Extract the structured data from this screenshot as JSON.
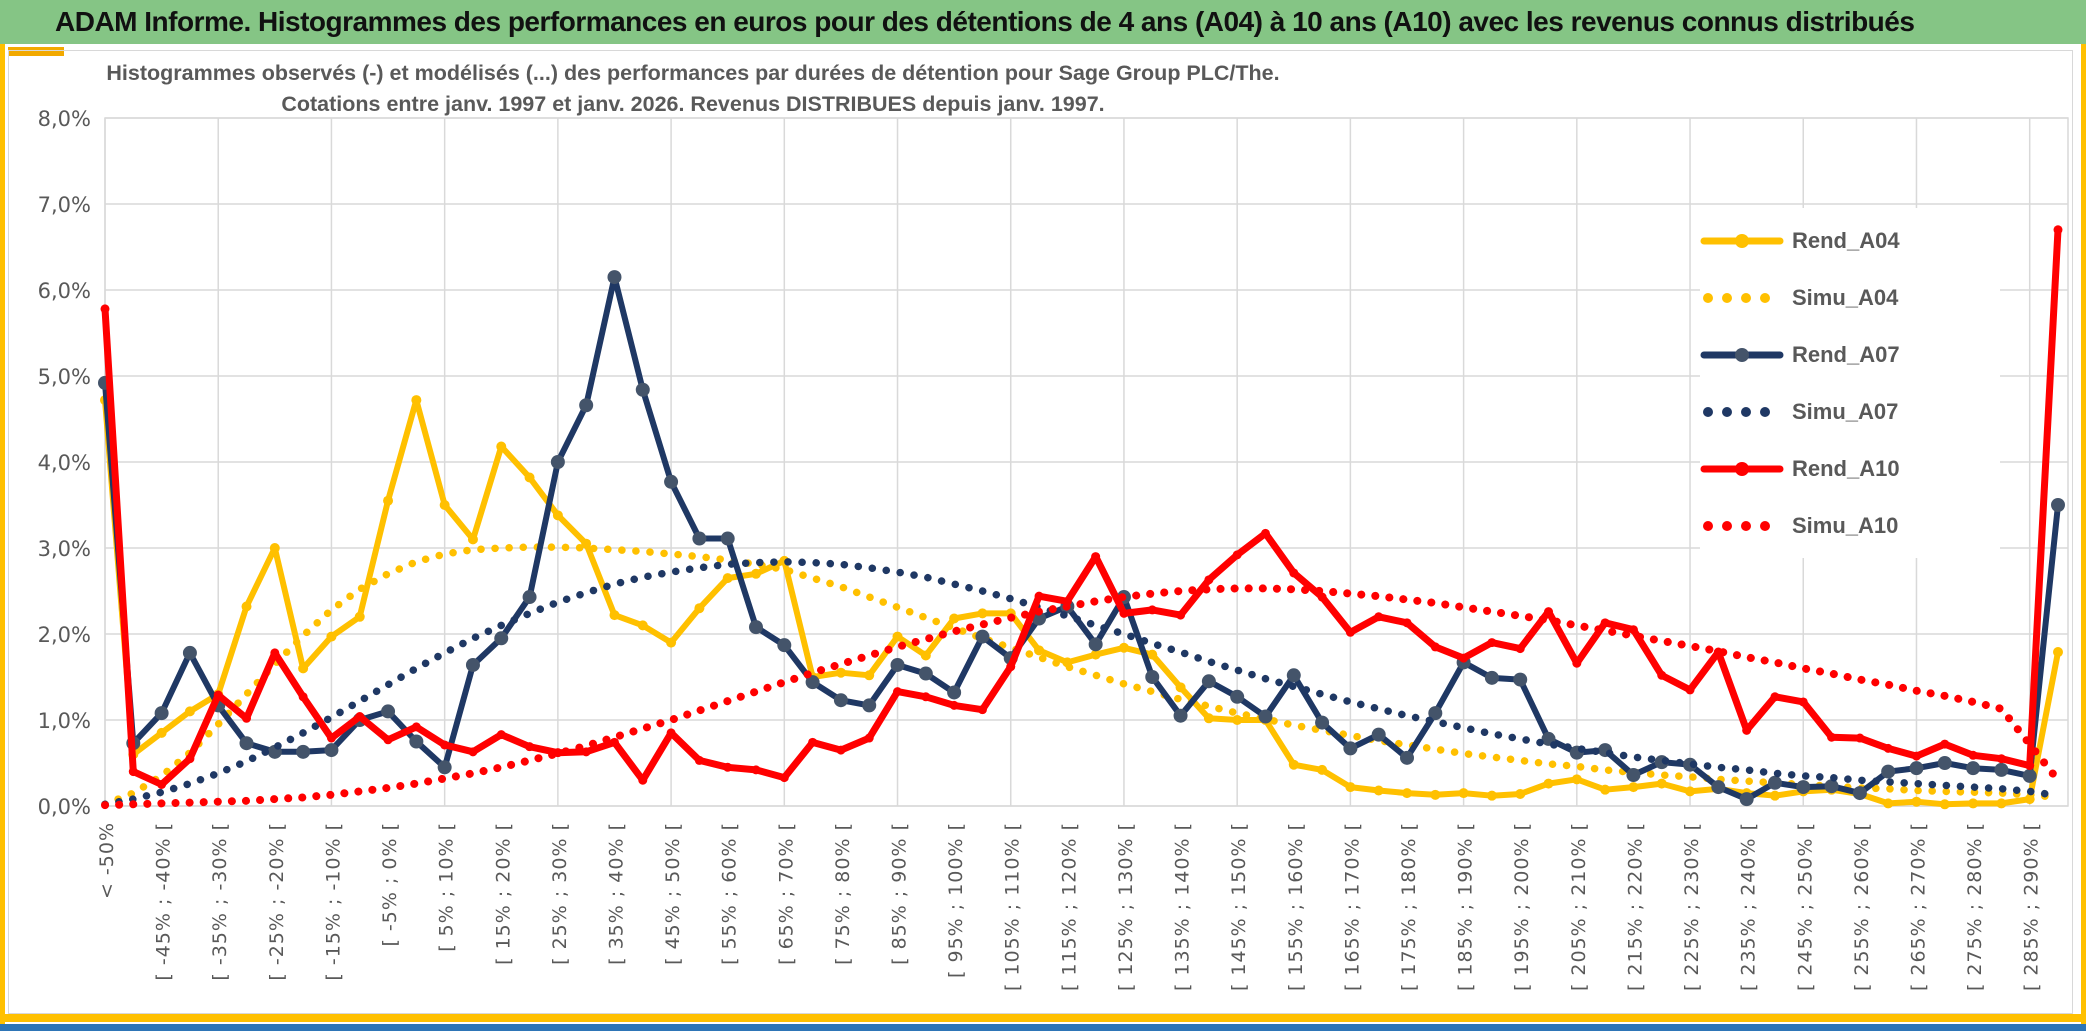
{
  "header": {
    "title": "ADAM Informe. Histogrammes des performances en euros pour des détentions de 4 ans (A04) à 10 ans (A10) avec les revenus connus distribués"
  },
  "chart": {
    "title_line1": "Histogrammes observés (-) et modélisés (...) des performances par durées de détention pour Sage Group PLC/The.",
    "title_line2": "Cotations entre janv. 1997 et janv. 2026. Revenus DISTRIBUES depuis janv. 1997."
  },
  "colors": {
    "header_green": "#85C585",
    "gold": "#FFC000",
    "navy": "#1F3864",
    "navy_marker": "#44546A",
    "red": "#FF0000",
    "axis_text": "#595959",
    "gridline": "#D9D9D9",
    "page_border_gold": "#FFC000",
    "bottom_bar_blue": "#2E75B6"
  },
  "chart_data": {
    "type": "line",
    "title": "Histogrammes observés (-) et modélisés (...) des performances par durées de détention pour Sage Group PLC/The. Cotations entre janv. 1997 et janv. 2026. Revenus DISTRIBUES depuis janv. 1997.",
    "xlabel": "",
    "ylabel": "",
    "ylim": [
      0,
      8
    ],
    "grid": true,
    "legend_position": "right-top",
    "n_points": 70,
    "x_label_every": 2,
    "y_tick_labels": [
      "0,0%",
      "1,0%",
      "2,0%",
      "3,0%",
      "4,0%",
      "5,0%",
      "6,0%",
      "7,0%",
      "8,0%"
    ],
    "x_tick_labels": [
      "< -50%",
      "[ -45% ; -40% [",
      "[ -35% ; -30% [",
      "[ -25% ; -20% [",
      "[ -15% ; -10% [",
      "[ -5% ; 0% [",
      "[ 5% ; 10% [",
      "[ 15% ; 20% [",
      "[ 25% ; 30% [",
      "[ 35% ; 40% [",
      "[ 45% ; 50% [",
      "[ 55% ; 60% [",
      "[ 65% ; 70% [",
      "[ 75% ; 80% [",
      "[ 85% ; 90% [",
      "[ 95% ; 100% [",
      "[ 105% ; 110% [",
      "[ 115% ; 120% [",
      "[ 125% ; 130% [",
      "[ 135% ; 140% [",
      "[ 145% ; 150% [",
      "[ 155% ; 160% [",
      "[ 165% ; 170% [",
      "[ 175% ; 180% [",
      "[ 185% ; 190% [",
      "[ 195% ; 200% [",
      "[ 205% ; 210% [",
      "[ 215% ; 220% [",
      "[ 225% ; 230% [",
      "[ 235% ; 240% [",
      "[ 245% ; 250% [",
      "[ 255% ; 260% [",
      "[ 265% ; 270% [",
      "[ 275% ; 280% [",
      "[ 285% ; 290% ["
    ],
    "series": [
      {
        "name": "Rend_A04",
        "style": "solid",
        "color": "#FFC000",
        "marker_color": "#FFC000",
        "values": [
          4.72,
          0.6,
          0.85,
          1.1,
          1.3,
          2.32,
          3.0,
          1.6,
          1.97,
          2.2,
          3.55,
          4.72,
          3.5,
          3.1,
          4.18,
          3.82,
          3.38,
          3.05,
          2.22,
          2.1,
          1.9,
          2.3,
          2.65,
          2.7,
          2.85,
          1.5,
          1.55,
          1.52,
          1.97,
          1.75,
          2.18,
          2.24,
          2.24,
          1.81,
          1.67,
          1.76,
          1.84,
          1.76,
          1.38,
          1.02,
          1.0,
          1.0,
          0.48,
          0.42,
          0.22,
          0.18,
          0.15,
          0.13,
          0.15,
          0.12,
          0.14,
          0.26,
          0.31,
          0.19,
          0.22,
          0.26,
          0.17,
          0.2,
          0.15,
          0.12,
          0.17,
          0.19,
          0.14,
          0.03,
          0.05,
          0.02,
          0.03,
          0.03,
          0.08,
          1.79
        ]
      },
      {
        "name": "Simu_A04",
        "style": "dotted",
        "color": "#FFC000",
        "marker_color": "#FFC000",
        "values": [
          0.02,
          0.15,
          0.35,
          0.62,
          0.95,
          1.3,
          1.65,
          1.98,
          2.28,
          2.52,
          2.7,
          2.84,
          2.93,
          2.98,
          3.0,
          3.01,
          3.01,
          3.0,
          2.98,
          2.96,
          2.93,
          2.9,
          2.86,
          2.81,
          2.75,
          2.65,
          2.55,
          2.43,
          2.31,
          2.19,
          2.07,
          1.95,
          1.84,
          1.73,
          1.62,
          1.52,
          1.42,
          1.33,
          1.24,
          1.16,
          1.08,
          1.01,
          0.94,
          0.88,
          0.82,
          0.76,
          0.71,
          0.66,
          0.61,
          0.57,
          0.53,
          0.49,
          0.46,
          0.42,
          0.39,
          0.36,
          0.34,
          0.31,
          0.29,
          0.27,
          0.25,
          0.23,
          0.21,
          0.2,
          0.18,
          0.17,
          0.16,
          0.15,
          0.13,
          0.1
        ]
      },
      {
        "name": "Rend_A07",
        "style": "solid",
        "color": "#1F3864",
        "marker_color": "#44546A",
        "values": [
          4.92,
          0.73,
          1.08,
          1.78,
          1.17,
          0.73,
          0.63,
          0.63,
          0.65,
          1.0,
          1.1,
          0.75,
          0.45,
          1.64,
          1.95,
          2.43,
          4.0,
          4.66,
          6.15,
          4.84,
          3.77,
          3.11,
          3.11,
          2.08,
          1.87,
          1.44,
          1.23,
          1.17,
          1.64,
          1.54,
          1.32,
          1.97,
          1.72,
          2.18,
          2.32,
          1.88,
          2.43,
          1.5,
          1.05,
          1.45,
          1.27,
          1.04,
          1.52,
          0.97,
          0.67,
          0.83,
          0.56,
          1.08,
          1.67,
          1.49,
          1.47,
          0.78,
          0.62,
          0.65,
          0.36,
          0.51,
          0.48,
          0.22,
          0.08,
          0.27,
          0.22,
          0.23,
          0.15,
          0.4,
          0.44,
          0.5,
          0.44,
          0.42,
          0.35,
          3.5
        ]
      },
      {
        "name": "Simu_A07",
        "style": "dotted",
        "color": "#1F3864",
        "marker_color": "#1F3864",
        "values": [
          0.02,
          0.08,
          0.16,
          0.26,
          0.38,
          0.52,
          0.68,
          0.85,
          1.03,
          1.22,
          1.41,
          1.6,
          1.78,
          1.95,
          2.1,
          2.24,
          2.37,
          2.48,
          2.58,
          2.66,
          2.72,
          2.77,
          2.81,
          2.83,
          2.84,
          2.83,
          2.81,
          2.77,
          2.72,
          2.66,
          2.58,
          2.5,
          2.41,
          2.31,
          2.21,
          2.1,
          2.0,
          1.89,
          1.79,
          1.68,
          1.58,
          1.48,
          1.39,
          1.3,
          1.21,
          1.13,
          1.05,
          0.98,
          0.91,
          0.84,
          0.78,
          0.72,
          0.67,
          0.62,
          0.57,
          0.53,
          0.49,
          0.45,
          0.42,
          0.38,
          0.35,
          0.33,
          0.3,
          0.28,
          0.26,
          0.24,
          0.22,
          0.2,
          0.17,
          0.12
        ]
      },
      {
        "name": "Rend_A10",
        "style": "solid",
        "color": "#FF0000",
        "marker_color": "#FF0000",
        "values": [
          5.78,
          0.4,
          0.25,
          0.55,
          1.29,
          1.02,
          1.78,
          1.27,
          0.79,
          1.04,
          0.77,
          0.92,
          0.71,
          0.63,
          0.83,
          0.69,
          0.62,
          0.63,
          0.74,
          0.3,
          0.85,
          0.53,
          0.45,
          0.42,
          0.33,
          0.74,
          0.65,
          0.79,
          1.33,
          1.27,
          1.17,
          1.12,
          1.62,
          2.44,
          2.38,
          2.9,
          2.24,
          2.28,
          2.22,
          2.63,
          2.92,
          3.17,
          2.71,
          2.43,
          2.02,
          2.2,
          2.13,
          1.85,
          1.72,
          1.9,
          1.83,
          2.26,
          1.66,
          2.13,
          2.05,
          1.52,
          1.35,
          1.79,
          0.88,
          1.27,
          1.21,
          0.8,
          0.79,
          0.67,
          0.58,
          0.72,
          0.59,
          0.55,
          0.47,
          6.7
        ]
      },
      {
        "name": "Simu_A10",
        "style": "dotted",
        "color": "#FF0000",
        "marker_color": "#FF0000",
        "values": [
          0.01,
          0.02,
          0.03,
          0.04,
          0.05,
          0.06,
          0.08,
          0.1,
          0.13,
          0.17,
          0.21,
          0.26,
          0.32,
          0.38,
          0.45,
          0.53,
          0.61,
          0.7,
          0.8,
          0.9,
          1.0,
          1.11,
          1.22,
          1.33,
          1.44,
          1.55,
          1.65,
          1.75,
          1.85,
          1.94,
          2.03,
          2.11,
          2.19,
          2.26,
          2.32,
          2.38,
          2.43,
          2.47,
          2.5,
          2.52,
          2.53,
          2.53,
          2.52,
          2.5,
          2.47,
          2.44,
          2.4,
          2.36,
          2.31,
          2.26,
          2.21,
          2.16,
          2.1,
          2.04,
          1.98,
          1.92,
          1.86,
          1.8,
          1.73,
          1.67,
          1.6,
          1.54,
          1.47,
          1.41,
          1.34,
          1.28,
          1.21,
          1.13,
          0.72,
          0.3
        ]
      }
    ]
  }
}
